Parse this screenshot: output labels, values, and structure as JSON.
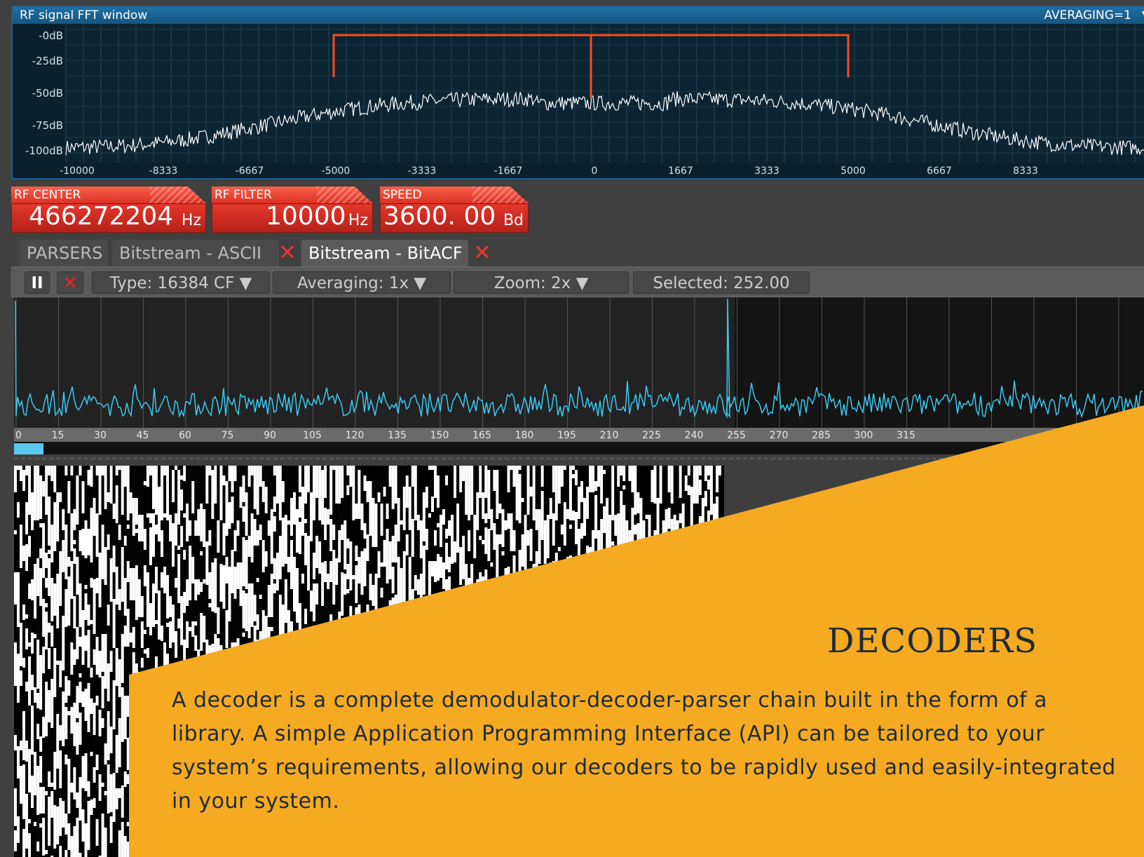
{
  "fft_window": {
    "title": "RF signal FFT window",
    "averaging": "AVERAGING=1",
    "db_labels": [
      "-0dB",
      "-25dB",
      "-50dB",
      "-75dB",
      "-100dB"
    ],
    "freq_labels": [
      "-10000",
      "-8333",
      "-6667",
      "-5000",
      "-3333",
      "-1667",
      "0",
      "1667",
      "3333",
      "5000",
      "6667",
      "8333"
    ],
    "marker_color": "#ff4a1c",
    "trace_color": "#ffffff"
  },
  "readouts": {
    "rf_center": {
      "label": "RF CENTER",
      "value": "466272204",
      "unit": "Hz"
    },
    "rf_filter": {
      "label": "RF FILTER",
      "value": "10000",
      "unit": "Hz"
    },
    "speed": {
      "label": "SPEED",
      "value": "3600. 00",
      "unit": "Bd"
    }
  },
  "tabs": {
    "parsers": "PARSERS",
    "ascii": "Bitstream - ASCII",
    "bitacf": "Bitstream - BitACF"
  },
  "toolbar": {
    "pause": "II",
    "type": "Type:  16384 CF ▼",
    "averaging": "Averaging:  1x ▼",
    "zoom": "Zoom:  2x ▼",
    "selected": "Selected:  252.00"
  },
  "acf_plot": {
    "x_labels": [
      "0",
      "15",
      "30",
      "45",
      "60",
      "75",
      "90",
      "105",
      "120",
      "135",
      "150",
      "165",
      "180",
      "195",
      "210",
      "225",
      "240",
      "255",
      "270",
      "285",
      "300",
      "315"
    ],
    "trace_color": "#3cc8f0"
  },
  "overlay": {
    "title": "DECODERS",
    "body": "A decoder is a complete demodulator-decoder-parser chain built in the form of a library. A simple Application Programming Interface (API) can be tailored to your system’s requirements, allowing our decoders to be rapidly used and easily-integrated in your system.",
    "color": "#f5aa22"
  }
}
